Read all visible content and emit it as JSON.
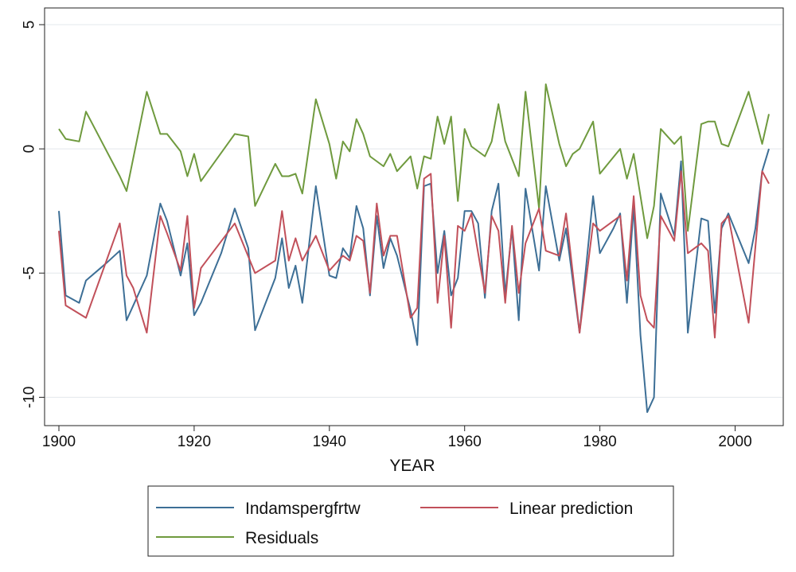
{
  "chart_data": {
    "type": "line",
    "title": "",
    "xlabel": "YEAR",
    "ylabel": "",
    "xlim": [
      1900,
      2005
    ],
    "ylim": [
      -10.5,
      5
    ],
    "x_ticks": [
      1900,
      1920,
      1940,
      1960,
      1980,
      2000
    ],
    "y_ticks": [
      5,
      0,
      -5,
      -10
    ],
    "x_tick_labels": [
      "1900",
      "1920",
      "1940",
      "1960",
      "1980",
      "2000"
    ],
    "y_tick_labels": [
      "5",
      "0",
      "-5",
      "-10"
    ],
    "grid": true,
    "legend_position": "bottom",
    "series": [
      {
        "name": "Indamspergfrtw",
        "color": "#3d6f96",
        "points": [
          [
            1900,
            -2.5
          ],
          [
            1901,
            -5.9
          ],
          [
            1903,
            -6.2
          ],
          [
            1904,
            -5.3
          ],
          [
            1907,
            -4.6
          ],
          [
            1909,
            -4.1
          ],
          [
            1910,
            -6.9
          ],
          [
            1913,
            -5.1
          ],
          [
            1915,
            -2.2
          ],
          [
            1916,
            -2.9
          ],
          [
            1918,
            -5.1
          ],
          [
            1919,
            -3.8
          ],
          [
            1920,
            -6.7
          ],
          [
            1921,
            -6.2
          ],
          [
            1924,
            -4.2
          ],
          [
            1926,
            -2.4
          ],
          [
            1928,
            -4.0
          ],
          [
            1929,
            -7.3
          ],
          [
            1932,
            -5.2
          ],
          [
            1933,
            -3.6
          ],
          [
            1934,
            -5.6
          ],
          [
            1935,
            -4.7
          ],
          [
            1936,
            -6.2
          ],
          [
            1938,
            -1.5
          ],
          [
            1940,
            -5.1
          ],
          [
            1941,
            -5.2
          ],
          [
            1942,
            -4.0
          ],
          [
            1943,
            -4.4
          ],
          [
            1944,
            -2.3
          ],
          [
            1945,
            -3.2
          ],
          [
            1946,
            -5.9
          ],
          [
            1947,
            -2.7
          ],
          [
            1948,
            -4.8
          ],
          [
            1949,
            -3.6
          ],
          [
            1950,
            -4.3
          ],
          [
            1952,
            -6.5
          ],
          [
            1953,
            -7.9
          ],
          [
            1954,
            -1.5
          ],
          [
            1955,
            -1.4
          ],
          [
            1956,
            -5.0
          ],
          [
            1957,
            -3.3
          ],
          [
            1958,
            -5.9
          ],
          [
            1959,
            -5.2
          ],
          [
            1960,
            -2.5
          ],
          [
            1961,
            -2.5
          ],
          [
            1962,
            -3.0
          ],
          [
            1963,
            -6.0
          ],
          [
            1964,
            -2.5
          ],
          [
            1965,
            -1.4
          ],
          [
            1966,
            -5.9
          ],
          [
            1967,
            -3.2
          ],
          [
            1968,
            -6.9
          ],
          [
            1969,
            -1.6
          ],
          [
            1971,
            -4.9
          ],
          [
            1972,
            -1.5
          ],
          [
            1974,
            -4.5
          ],
          [
            1975,
            -3.2
          ],
          [
            1977,
            -7.4
          ],
          [
            1979,
            -1.9
          ],
          [
            1980,
            -4.2
          ],
          [
            1982,
            -3.2
          ],
          [
            1983,
            -2.6
          ],
          [
            1984,
            -6.2
          ],
          [
            1985,
            -2.3
          ],
          [
            1986,
            -7.5
          ],
          [
            1987,
            -10.6
          ],
          [
            1988,
            -10.0
          ],
          [
            1989,
            -1.8
          ],
          [
            1991,
            -3.5
          ],
          [
            1992,
            -0.5
          ],
          [
            1993,
            -7.4
          ],
          [
            1994,
            -5.1
          ],
          [
            1995,
            -2.8
          ],
          [
            1996,
            -2.9
          ],
          [
            1997,
            -6.6
          ],
          [
            1998,
            -3.2
          ],
          [
            1999,
            -2.6
          ],
          [
            2002,
            -4.6
          ],
          [
            2003,
            -3.2
          ],
          [
            2004,
            -0.9
          ],
          [
            2005,
            0.0
          ]
        ]
      },
      {
        "name": "Linear prediction",
        "color": "#c1505a",
        "points": [
          [
            1900,
            -3.3
          ],
          [
            1901,
            -6.3
          ],
          [
            1904,
            -6.8
          ],
          [
            1909,
            -3.0
          ],
          [
            1910,
            -5.1
          ],
          [
            1911,
            -5.6
          ],
          [
            1913,
            -7.4
          ],
          [
            1915,
            -2.7
          ],
          [
            1916,
            -3.4
          ],
          [
            1918,
            -4.9
          ],
          [
            1919,
            -2.7
          ],
          [
            1920,
            -6.4
          ],
          [
            1921,
            -4.8
          ],
          [
            1926,
            -3.0
          ],
          [
            1929,
            -5.0
          ],
          [
            1932,
            -4.5
          ],
          [
            1933,
            -2.5
          ],
          [
            1934,
            -4.5
          ],
          [
            1935,
            -3.6
          ],
          [
            1936,
            -4.5
          ],
          [
            1938,
            -3.5
          ],
          [
            1940,
            -4.9
          ],
          [
            1942,
            -4.3
          ],
          [
            1943,
            -4.5
          ],
          [
            1944,
            -3.5
          ],
          [
            1945,
            -3.7
          ],
          [
            1946,
            -5.8
          ],
          [
            1947,
            -2.2
          ],
          [
            1948,
            -4.3
          ],
          [
            1949,
            -3.5
          ],
          [
            1950,
            -3.5
          ],
          [
            1952,
            -6.8
          ],
          [
            1953,
            -6.4
          ],
          [
            1954,
            -1.2
          ],
          [
            1955,
            -1.0
          ],
          [
            1956,
            -6.2
          ],
          [
            1957,
            -3.5
          ],
          [
            1958,
            -7.2
          ],
          [
            1959,
            -3.1
          ],
          [
            1960,
            -3.3
          ],
          [
            1961,
            -2.6
          ],
          [
            1963,
            -5.8
          ],
          [
            1964,
            -2.7
          ],
          [
            1965,
            -3.3
          ],
          [
            1966,
            -6.2
          ],
          [
            1967,
            -3.1
          ],
          [
            1968,
            -5.8
          ],
          [
            1969,
            -3.8
          ],
          [
            1971,
            -2.4
          ],
          [
            1972,
            -4.1
          ],
          [
            1974,
            -4.3
          ],
          [
            1975,
            -2.6
          ],
          [
            1977,
            -7.4
          ],
          [
            1979,
            -3.0
          ],
          [
            1980,
            -3.3
          ],
          [
            1983,
            -2.7
          ],
          [
            1984,
            -5.3
          ],
          [
            1985,
            -1.9
          ],
          [
            1986,
            -5.9
          ],
          [
            1987,
            -6.9
          ],
          [
            1988,
            -7.2
          ],
          [
            1989,
            -2.7
          ],
          [
            1991,
            -3.7
          ],
          [
            1992,
            -0.9
          ],
          [
            1993,
            -4.2
          ],
          [
            1995,
            -3.8
          ],
          [
            1996,
            -4.1
          ],
          [
            1997,
            -7.6
          ],
          [
            1998,
            -3.0
          ],
          [
            1999,
            -2.7
          ],
          [
            2002,
            -7.0
          ],
          [
            2004,
            -0.9
          ],
          [
            2005,
            -1.4
          ]
        ]
      },
      {
        "name": "Residuals",
        "color": "#6f9a3e",
        "points": [
          [
            1900,
            0.8
          ],
          [
            1901,
            0.4
          ],
          [
            1903,
            0.3
          ],
          [
            1904,
            1.5
          ],
          [
            1909,
            -1.1
          ],
          [
            1910,
            -1.7
          ],
          [
            1913,
            2.3
          ],
          [
            1915,
            0.6
          ],
          [
            1916,
            0.6
          ],
          [
            1918,
            -0.1
          ],
          [
            1919,
            -1.1
          ],
          [
            1920,
            -0.2
          ],
          [
            1921,
            -1.3
          ],
          [
            1926,
            0.6
          ],
          [
            1928,
            0.5
          ],
          [
            1929,
            -2.3
          ],
          [
            1932,
            -0.6
          ],
          [
            1933,
            -1.1
          ],
          [
            1934,
            -1.1
          ],
          [
            1935,
            -1.0
          ],
          [
            1936,
            -1.8
          ],
          [
            1938,
            2.0
          ],
          [
            1940,
            0.2
          ],
          [
            1941,
            -1.2
          ],
          [
            1942,
            0.3
          ],
          [
            1943,
            -0.1
          ],
          [
            1944,
            1.2
          ],
          [
            1945,
            0.6
          ],
          [
            1946,
            -0.3
          ],
          [
            1948,
            -0.7
          ],
          [
            1949,
            -0.2
          ],
          [
            1950,
            -0.9
          ],
          [
            1952,
            -0.3
          ],
          [
            1953,
            -1.6
          ],
          [
            1954,
            -0.3
          ],
          [
            1955,
            -0.4
          ],
          [
            1956,
            1.3
          ],
          [
            1957,
            0.2
          ],
          [
            1958,
            1.3
          ],
          [
            1959,
            -2.1
          ],
          [
            1960,
            0.8
          ],
          [
            1961,
            0.1
          ],
          [
            1963,
            -0.3
          ],
          [
            1964,
            0.3
          ],
          [
            1965,
            1.8
          ],
          [
            1966,
            0.3
          ],
          [
            1968,
            -1.1
          ],
          [
            1969,
            2.3
          ],
          [
            1971,
            -2.4
          ],
          [
            1972,
            2.6
          ],
          [
            1974,
            0.2
          ],
          [
            1975,
            -0.7
          ],
          [
            1976,
            -0.2
          ],
          [
            1977,
            0.0
          ],
          [
            1979,
            1.1
          ],
          [
            1980,
            -1.0
          ],
          [
            1983,
            0.0
          ],
          [
            1984,
            -1.2
          ],
          [
            1985,
            -0.2
          ],
          [
            1987,
            -3.6
          ],
          [
            1988,
            -2.3
          ],
          [
            1989,
            0.8
          ],
          [
            1991,
            0.2
          ],
          [
            1992,
            0.5
          ],
          [
            1993,
            -3.3
          ],
          [
            1995,
            1.0
          ],
          [
            1996,
            1.1
          ],
          [
            1997,
            1.1
          ],
          [
            1998,
            0.2
          ],
          [
            1999,
            0.1
          ],
          [
            2002,
            2.3
          ],
          [
            2004,
            0.2
          ],
          [
            2005,
            1.4
          ]
        ]
      }
    ]
  }
}
